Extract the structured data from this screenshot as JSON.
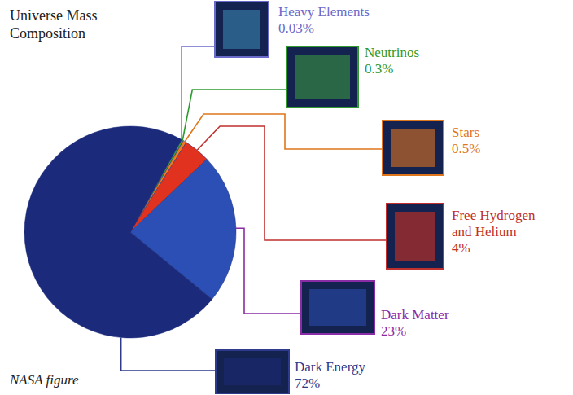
{
  "chart_data": {
    "type": "pie",
    "title": "Universe Mass Composition",
    "source": "NASA figure",
    "categories": [
      "Heavy Elements",
      "Neutrinos",
      "Stars",
      "Free Hydrogen and Helium",
      "Dark Matter",
      "Dark Energy"
    ],
    "values": [
      0.03,
      0.3,
      0.5,
      4,
      23,
      72
    ],
    "value_labels": [
      "0.03%",
      "0.3%",
      "0.5%",
      "4%",
      "23%",
      "72%"
    ],
    "colors": [
      "#3d8fb8",
      "#3aa040",
      "#f07a1c",
      "#e0321e",
      "#2b4fb5",
      "#1b2a7a"
    ],
    "data_labels": true
  }
}
